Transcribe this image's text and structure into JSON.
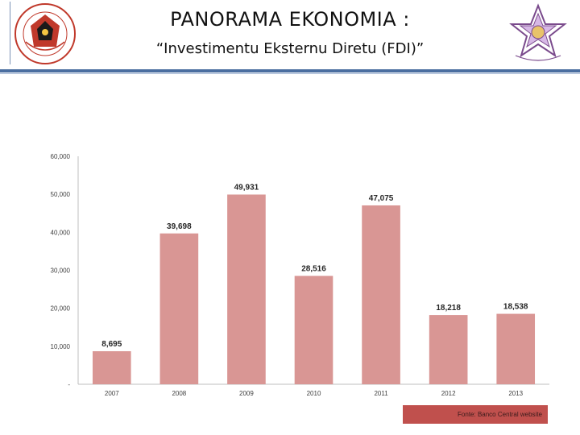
{
  "header": {
    "title": "PANORAMA EKONOMIA :",
    "subtitle": "“Investimentu Eksternu Diretu (FDI)”",
    "left_logo_icon": "government-seal-icon",
    "right_logo_icon": "star-emblem-icon"
  },
  "colors": {
    "bar": "#d99694",
    "rule": "#4a6ea0",
    "source_bg": "#c0504d"
  },
  "chart_data": {
    "type": "bar",
    "categories": [
      "2007",
      "2008",
      "2009",
      "2010",
      "2011",
      "2012",
      "2013"
    ],
    "values": [
      8695,
      39698,
      49931,
      28516,
      47075,
      18218,
      18538
    ],
    "value_labels": [
      "8,695",
      "39,698",
      "49,931",
      "28,516",
      "47,075",
      "18,218",
      "18,538"
    ],
    "yticks": [
      "-",
      "10,000",
      "20,000",
      "30,000",
      "40,000",
      "50,000",
      "60,000"
    ],
    "ylim": [
      0,
      60000
    ],
    "grid": false,
    "title": "",
    "xlabel": "",
    "ylabel": ""
  },
  "source_label": "Fonte: Banco Central website"
}
